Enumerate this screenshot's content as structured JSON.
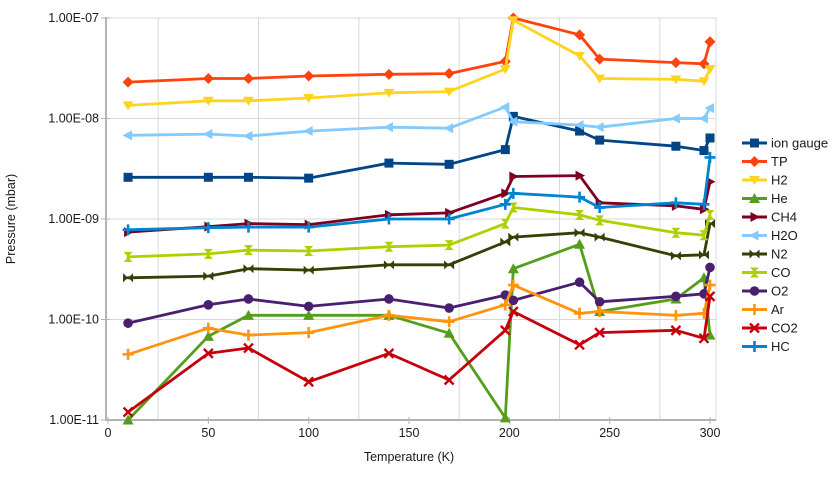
{
  "chart_data": {
    "type": "line",
    "title": "",
    "xlabel": "Temperature (K)",
    "ylabel": "Pressure (mbar)",
    "x_axis": {
      "min": 0,
      "max": 300,
      "tick_labels": [
        "0",
        "50",
        "100",
        "150",
        "200",
        "250",
        "300"
      ],
      "tick_values": [
        0,
        50,
        100,
        150,
        200,
        250,
        300
      ]
    },
    "y_axis": {
      "scale": "log",
      "min": 1e-11,
      "max": 1e-07,
      "tick_labels": [
        "1.00E-07",
        "1.00E-08",
        "1.00E-09",
        "1.00E-10",
        "1.00E-11"
      ],
      "tick_values": [
        1e-07,
        1e-08,
        1e-09,
        1e-10,
        1e-11
      ]
    },
    "grid": true,
    "legend_position": "right",
    "x": [
      10,
      50,
      70,
      100,
      140,
      170,
      198,
      202,
      235,
      245,
      283,
      297,
      300
    ],
    "series": [
      {
        "name": "ion gauge",
        "color": "#004586",
        "marker": "square",
        "values": [
          2.6e-09,
          2.6e-09,
          2.6e-09,
          2.55e-09,
          3.6e-09,
          3.5e-09,
          4.9e-09,
          1.05e-08,
          7.5e-09,
          6.1e-09,
          5.3e-09,
          4.8e-09,
          6.4e-09
        ]
      },
      {
        "name": "TP",
        "color": "#FF420E",
        "marker": "diamond",
        "values": [
          2.3e-08,
          2.5e-08,
          2.5e-08,
          2.65e-08,
          2.75e-08,
          2.8e-08,
          3.7e-08,
          1e-07,
          6.8e-08,
          3.9e-08,
          3.6e-08,
          3.5e-08,
          5.8e-08
        ]
      },
      {
        "name": "H2",
        "color": "#FFD320",
        "marker": "triangle-down",
        "values": [
          1.35e-08,
          1.5e-08,
          1.5e-08,
          1.6e-08,
          1.8e-08,
          1.85e-08,
          3.1e-08,
          9.5e-08,
          4.2e-08,
          2.5e-08,
          2.45e-08,
          2.35e-08,
          3.1e-08
        ]
      },
      {
        "name": "He",
        "color": "#579D1C",
        "marker": "triangle-up",
        "values": [
          1e-11,
          6.8e-11,
          1.1e-10,
          1.1e-10,
          1.1e-10,
          7.3e-11,
          1.05e-11,
          3.2e-10,
          5.6e-10,
          1.2e-10,
          1.6e-10,
          2.6e-10,
          7e-11
        ]
      },
      {
        "name": "CH4",
        "color": "#7E0021",
        "marker": "triangle-right",
        "values": [
          7.4e-10,
          8.4e-10,
          9e-10,
          8.8e-10,
          1.1e-09,
          1.15e-09,
          1.8e-09,
          2.65e-09,
          2.7e-09,
          1.45e-09,
          1.35e-09,
          1.25e-09,
          2.35e-09
        ]
      },
      {
        "name": "H2O",
        "color": "#83CAFF",
        "marker": "triangle-left",
        "values": [
          6.8e-09,
          7e-09,
          6.7e-09,
          7.5e-09,
          8.2e-09,
          8e-09,
          1.3e-08,
          9.3e-09,
          8.6e-09,
          8.2e-09,
          1e-08,
          1e-08,
          1.27e-08
        ]
      },
      {
        "name": "N2",
        "color": "#314004",
        "marker": "bowtie",
        "values": [
          2.6e-10,
          2.7e-10,
          3.2e-10,
          3.1e-10,
          3.5e-10,
          3.5e-10,
          5.9e-10,
          6.6e-10,
          7.3e-10,
          6.6e-10,
          4.3e-10,
          4.4e-10,
          9e-10
        ]
      },
      {
        "name": "CO",
        "color": "#AECF00",
        "marker": "hourglass",
        "values": [
          4.2e-10,
          4.5e-10,
          4.9e-10,
          4.8e-10,
          5.3e-10,
          5.5e-10,
          9e-10,
          1.3e-09,
          1.1e-09,
          9.7e-10,
          7.3e-10,
          6.9e-10,
          1.1e-09
        ]
      },
      {
        "name": "O2",
        "color": "#4B1F6F",
        "marker": "circle",
        "values": [
          9.2e-11,
          1.4e-10,
          1.6e-10,
          1.35e-10,
          1.6e-10,
          1.3e-10,
          1.75e-10,
          1.55e-10,
          2.35e-10,
          1.5e-10,
          1.7e-10,
          1.8e-10,
          3.3e-10
        ]
      },
      {
        "name": "Ar",
        "color": "#FF950E",
        "marker": "plus",
        "values": [
          4.5e-11,
          8.2e-11,
          7e-11,
          7.4e-11,
          1.1e-10,
          9.5e-11,
          1.4e-10,
          2.2e-10,
          1.15e-10,
          1.2e-10,
          1.1e-10,
          1.15e-10,
          2.2e-10
        ]
      },
      {
        "name": "CO2",
        "color": "#C5000B",
        "marker": "x",
        "values": [
          1.2e-11,
          4.6e-11,
          5.2e-11,
          2.4e-11,
          4.6e-11,
          2.5e-11,
          7.8e-11,
          1.2e-10,
          5.6e-11,
          7.4e-11,
          7.8e-11,
          6.5e-11,
          1.7e-10
        ]
      },
      {
        "name": "HC",
        "color": "#0084D1",
        "marker": "plus",
        "values": [
          7.8e-10,
          8.2e-10,
          8.3e-10,
          8.3e-10,
          1e-09,
          1e-09,
          1.4e-09,
          1.8e-09,
          1.65e-09,
          1.3e-09,
          1.45e-09,
          1.4e-09,
          4.1e-09
        ]
      }
    ],
    "colors": {
      "axis": "#b3b3b3",
      "gridline": "#d9d9d9",
      "text": "#1a1a1a",
      "background": "#ffffff"
    }
  }
}
